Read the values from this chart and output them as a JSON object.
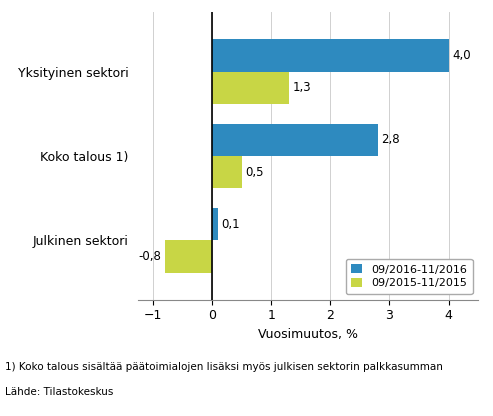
{
  "categories": [
    "Julkinen sektori",
    "Koko talous 1)",
    "Yksityinen sektori"
  ],
  "series_2016": [
    0.1,
    2.8,
    4.0
  ],
  "series_2015": [
    -0.8,
    0.5,
    1.3
  ],
  "color_2016": "#2e8abf",
  "color_2015": "#c8d645",
  "xlabel": "Vuosimuutos, %",
  "legend_2016": "09/2016-11/2016",
  "legend_2015": "09/2015-11/2015",
  "xlim": [
    -1.25,
    4.5
  ],
  "xticks": [
    -1,
    0,
    1,
    2,
    3,
    4
  ],
  "footnote1": "1) Koko talous sisältää päätoimialojen lisäksi myös julkisen sektorin palkkasumman",
  "footnote2": "Lähde: Tilastokeskus",
  "bar_height": 0.38
}
